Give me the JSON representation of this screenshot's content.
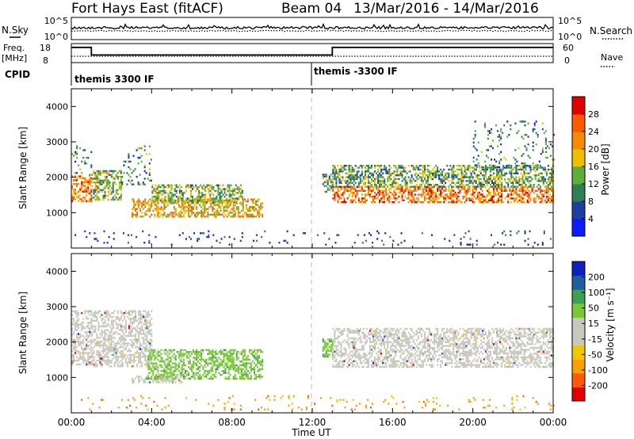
{
  "header": {
    "station": "Fort Hays East (fitACF)",
    "beam": "Beam 04",
    "date_range": "13/Mar/2016 - 14/Mar/2016"
  },
  "noise_panel": {
    "left_label": "N.Sky",
    "right_label": "N.Search",
    "ticks_left": [
      "10^5",
      "10^0"
    ],
    "ticks_right": [
      "10^5",
      "10^0"
    ]
  },
  "freq_panel": {
    "left_label_top": "Freq.",
    "left_label_unit": "[MHz]",
    "ticks_left": [
      "18",
      "8"
    ],
    "right_label": "Nave",
    "ticks_right": [
      "60",
      "0"
    ],
    "freq_segments": [
      {
        "from_hour": 0,
        "to_hour": 1.0,
        "freq_mhz": 17
      },
      {
        "from_hour": 1.0,
        "to_hour": 13.0,
        "freq_mhz": 11
      },
      {
        "from_hour": 13.0,
        "to_hour": 24,
        "freq_mhz": 17
      }
    ]
  },
  "cpid_panel": {
    "label": "CPID",
    "segments": [
      {
        "start_hour": 0,
        "text": "themis 3300 IF"
      },
      {
        "start_hour": 12,
        "text": "themis -3300 IF"
      }
    ]
  },
  "chart_data": [
    {
      "type": "heatmap",
      "name": "power",
      "xlabel": "",
      "ylabel": "Slant Range [km]",
      "xlim": [
        0,
        24
      ],
      "ylim": [
        0,
        4500
      ],
      "yticks": [
        1000,
        2000,
        3000,
        4000
      ],
      "colorbar": {
        "label": "Power [dB]",
        "ticks": [
          "4",
          "8",
          "12",
          "16",
          "20",
          "24",
          "28"
        ],
        "range": [
          0,
          30
        ],
        "colors": [
          "#0a1cff",
          "#1f3f9e",
          "#2f7f55",
          "#5fae3a",
          "#f0c000",
          "#f78a00",
          "#ff5a00",
          "#e00000"
        ]
      },
      "echo_regions": [
        {
          "t0": 0.0,
          "t1": 1.0,
          "r0": 1350,
          "r1": 2050,
          "level": 0.72
        },
        {
          "t0": 0.0,
          "t1": 1.0,
          "r0": 2050,
          "r1": 2900,
          "level": 0.3
        },
        {
          "t0": 1.0,
          "t1": 2.5,
          "r0": 1350,
          "r1": 2200,
          "level": 0.45
        },
        {
          "t0": 2.5,
          "t1": 4.0,
          "r0": 1800,
          "r1": 2900,
          "level": 0.3
        },
        {
          "t0": 3.0,
          "t1": 9.5,
          "r0": 900,
          "r1": 1400,
          "level": 0.6
        },
        {
          "t0": 4.0,
          "t1": 8.5,
          "r0": 1300,
          "r1": 1800,
          "level": 0.45
        },
        {
          "t0": 12.5,
          "t1": 13.0,
          "r0": 1600,
          "r1": 2100,
          "level": 0.35
        },
        {
          "t0": 13.0,
          "t1": 24.0,
          "r0": 1300,
          "r1": 1750,
          "level": 0.75
        },
        {
          "t0": 13.0,
          "t1": 24.0,
          "r0": 1750,
          "r1": 2350,
          "level": 0.4
        },
        {
          "t0": 20.0,
          "t1": 24.0,
          "r0": 2300,
          "r1": 3600,
          "level": 0.3
        },
        {
          "t0": 0.0,
          "t1": 24.0,
          "r0": 100,
          "r1": 500,
          "level": 0.15
        }
      ]
    },
    {
      "type": "heatmap",
      "name": "velocity",
      "xlabel": "Time UT",
      "ylabel": "Slant Range [km]",
      "xlim": [
        0,
        24
      ],
      "ylim": [
        0,
        4500
      ],
      "xticks": [
        "00:00",
        "04:00",
        "08:00",
        "12:00",
        "16:00",
        "20:00",
        "00:00"
      ],
      "yticks": [
        1000,
        2000,
        3000,
        4000
      ],
      "colorbar": {
        "label": "Velocity [m s⁻¹]",
        "ticks": [
          "200",
          "100",
          "50",
          "15",
          "-15",
          "-50",
          "-100",
          "-200"
        ],
        "range": [
          -250,
          250
        ],
        "colors": [
          "#e00000",
          "#ff5a00",
          "#f7a000",
          "#f0c800",
          "#c8c8c0",
          "#c8c8c0",
          "#78c832",
          "#3f9e55",
          "#1f5fa0",
          "#1020c0"
        ]
      },
      "echo_regions": [
        {
          "t0": 0.0,
          "t1": 1.0,
          "r0": 1350,
          "r1": 2900,
          "class": "ground"
        },
        {
          "t0": 1.0,
          "t1": 4.0,
          "r0": 1300,
          "r1": 2900,
          "class": "ground"
        },
        {
          "t0": 3.0,
          "t1": 5.5,
          "r0": 850,
          "r1": 1050,
          "class": "ground"
        },
        {
          "t0": 3.8,
          "t1": 9.5,
          "r0": 950,
          "r1": 1800,
          "class": "positive"
        },
        {
          "t0": 12.5,
          "t1": 13.0,
          "r0": 1600,
          "r1": 2100,
          "class": "positive"
        },
        {
          "t0": 13.0,
          "t1": 24.0,
          "r0": 1300,
          "r1": 2400,
          "class": "ground"
        },
        {
          "t0": 0.0,
          "t1": 24.0,
          "r0": 100,
          "r1": 500,
          "class": "negative"
        }
      ]
    }
  ]
}
